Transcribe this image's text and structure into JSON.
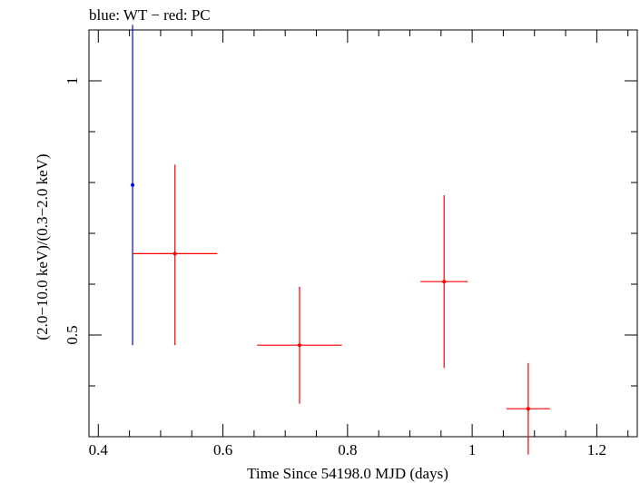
{
  "chart_data": {
    "type": "scatter",
    "title": "blue: WT − red: PC",
    "xlabel": "Time Since 54198.0 MJD (days)",
    "ylabel": "(2.0−10.0 keV)/(0.3−2.0 keV)",
    "xlim": [
      0.385,
      1.265
    ],
    "ylim": [
      0.3,
      1.1
    ],
    "x_ticks": [
      {
        "value": 0.4,
        "label": "0.4"
      },
      {
        "value": 0.6,
        "label": "0.6"
      },
      {
        "value": 0.8,
        "label": "0.8"
      },
      {
        "value": 1.0,
        "label": "1"
      },
      {
        "value": 1.2,
        "label": "1.2"
      }
    ],
    "y_ticks": [
      {
        "value": 0.5,
        "label": "0.5"
      },
      {
        "value": 1.0,
        "label": "1"
      }
    ],
    "grid": false,
    "series": [
      {
        "name": "WT",
        "color": "#0000ff",
        "points": [
          {
            "x": 0.455,
            "xerr_low": 0.0,
            "xerr_high": 0.0,
            "y": 0.795,
            "yerr_low": 0.315,
            "yerr_high": 0.315
          }
        ]
      },
      {
        "name": "PC",
        "color": "#ff0000",
        "points": [
          {
            "x": 0.523,
            "xerr_low": 0.068,
            "xerr_high": 0.068,
            "y": 0.66,
            "yerr_low": 0.18,
            "yerr_high": 0.175
          },
          {
            "x": 0.723,
            "xerr_low": 0.068,
            "xerr_high": 0.068,
            "y": 0.48,
            "yerr_low": 0.115,
            "yerr_high": 0.115
          },
          {
            "x": 0.955,
            "xerr_low": 0.038,
            "xerr_high": 0.038,
            "y": 0.605,
            "yerr_low": 0.17,
            "yerr_high": 0.17
          },
          {
            "x": 1.09,
            "xerr_low": 0.035,
            "xerr_high": 0.035,
            "y": 0.355,
            "yerr_low": 0.09,
            "yerr_high": 0.09
          }
        ]
      }
    ]
  }
}
